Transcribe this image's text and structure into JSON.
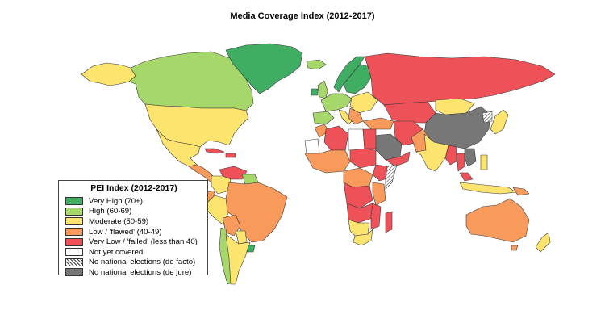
{
  "title": "Media Coverage Index (2012-2017)",
  "legend": {
    "title": "PEI Index (2012-2017)",
    "items": [
      {
        "label": "Very High (70+)",
        "color": "#3fae62",
        "pattern": "solid"
      },
      {
        "label": "High (60-69)",
        "color": "#a6d76a",
        "pattern": "solid"
      },
      {
        "label": "Moderate (50-59)",
        "color": "#fde46e",
        "pattern": "solid"
      },
      {
        "label": "Low / 'flawed' (40-49)",
        "color": "#f79a5b",
        "pattern": "solid"
      },
      {
        "label": "Very Low / 'failed' (less than 40)",
        "color": "#ef5158",
        "pattern": "solid"
      },
      {
        "label": "Not yet covered",
        "color": "#ffffff",
        "pattern": "solid"
      },
      {
        "label": "No national elections (de facto)",
        "color": "#ffffff",
        "pattern": "hatched"
      },
      {
        "label": "No national elections (de jure)",
        "color": "#777777",
        "pattern": "solid"
      }
    ]
  }
}
